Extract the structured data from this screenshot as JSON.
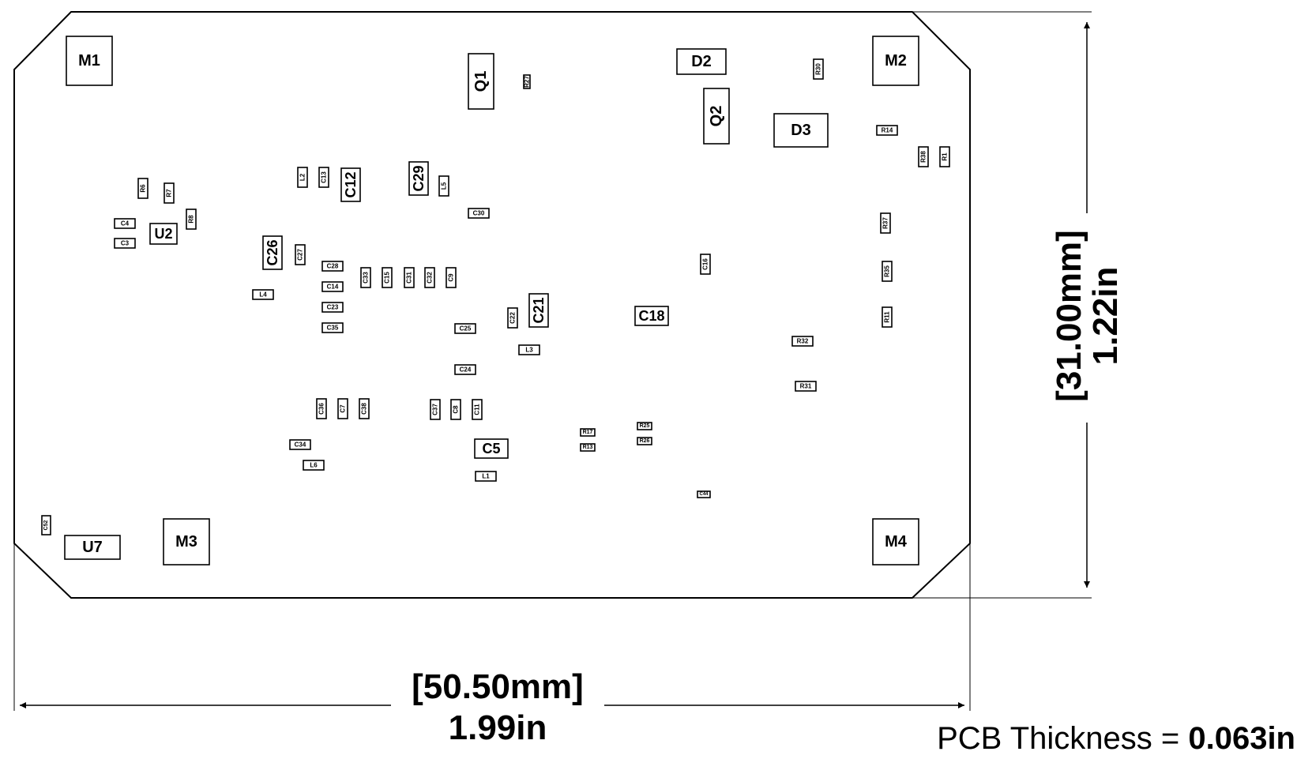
{
  "board": {
    "outline_color": "#000000",
    "width_dimension": {
      "mm": "[50.50mm]",
      "inch": "1.99in"
    },
    "height_dimension": {
      "mm": "[31.00mm]",
      "inch": "1.22in"
    },
    "thickness": {
      "label": "PCB Thickness = ",
      "value": "0.063in"
    }
  },
  "components": [
    {
      "ref": "M1"
    },
    {
      "ref": "M2"
    },
    {
      "ref": "M3"
    },
    {
      "ref": "M4"
    },
    {
      "ref": "Q1"
    },
    {
      "ref": "Q2"
    },
    {
      "ref": "D2"
    },
    {
      "ref": "D3"
    },
    {
      "ref": "U2"
    },
    {
      "ref": "U7"
    },
    {
      "ref": "C12"
    },
    {
      "ref": "C29"
    },
    {
      "ref": "C26"
    },
    {
      "ref": "C21"
    },
    {
      "ref": "C18"
    },
    {
      "ref": "C5"
    },
    {
      "ref": "R27"
    },
    {
      "ref": "R30"
    },
    {
      "ref": "R14"
    },
    {
      "ref": "R38"
    },
    {
      "ref": "R1"
    },
    {
      "ref": "R6"
    },
    {
      "ref": "R7"
    },
    {
      "ref": "R8"
    },
    {
      "ref": "C4"
    },
    {
      "ref": "C3"
    },
    {
      "ref": "L2"
    },
    {
      "ref": "C13"
    },
    {
      "ref": "L5"
    },
    {
      "ref": "C30"
    },
    {
      "ref": "C27"
    },
    {
      "ref": "C28"
    },
    {
      "ref": "C14"
    },
    {
      "ref": "C23"
    },
    {
      "ref": "C35"
    },
    {
      "ref": "L4"
    },
    {
      "ref": "C33"
    },
    {
      "ref": "C15"
    },
    {
      "ref": "C31"
    },
    {
      "ref": "C32"
    },
    {
      "ref": "C9"
    },
    {
      "ref": "C22"
    },
    {
      "ref": "C25"
    },
    {
      "ref": "L3"
    },
    {
      "ref": "C24"
    },
    {
      "ref": "C16"
    },
    {
      "ref": "R37"
    },
    {
      "ref": "R35"
    },
    {
      "ref": "R11"
    },
    {
      "ref": "R32"
    },
    {
      "ref": "R31"
    },
    {
      "ref": "C36"
    },
    {
      "ref": "C7"
    },
    {
      "ref": "C38"
    },
    {
      "ref": "C37"
    },
    {
      "ref": "C8"
    },
    {
      "ref": "C11"
    },
    {
      "ref": "C34"
    },
    {
      "ref": "L6"
    },
    {
      "ref": "L1"
    },
    {
      "ref": "R17"
    },
    {
      "ref": "R13"
    },
    {
      "ref": "R25"
    },
    {
      "ref": "R26"
    },
    {
      "ref": "C44"
    },
    {
      "ref": "C52"
    }
  ]
}
